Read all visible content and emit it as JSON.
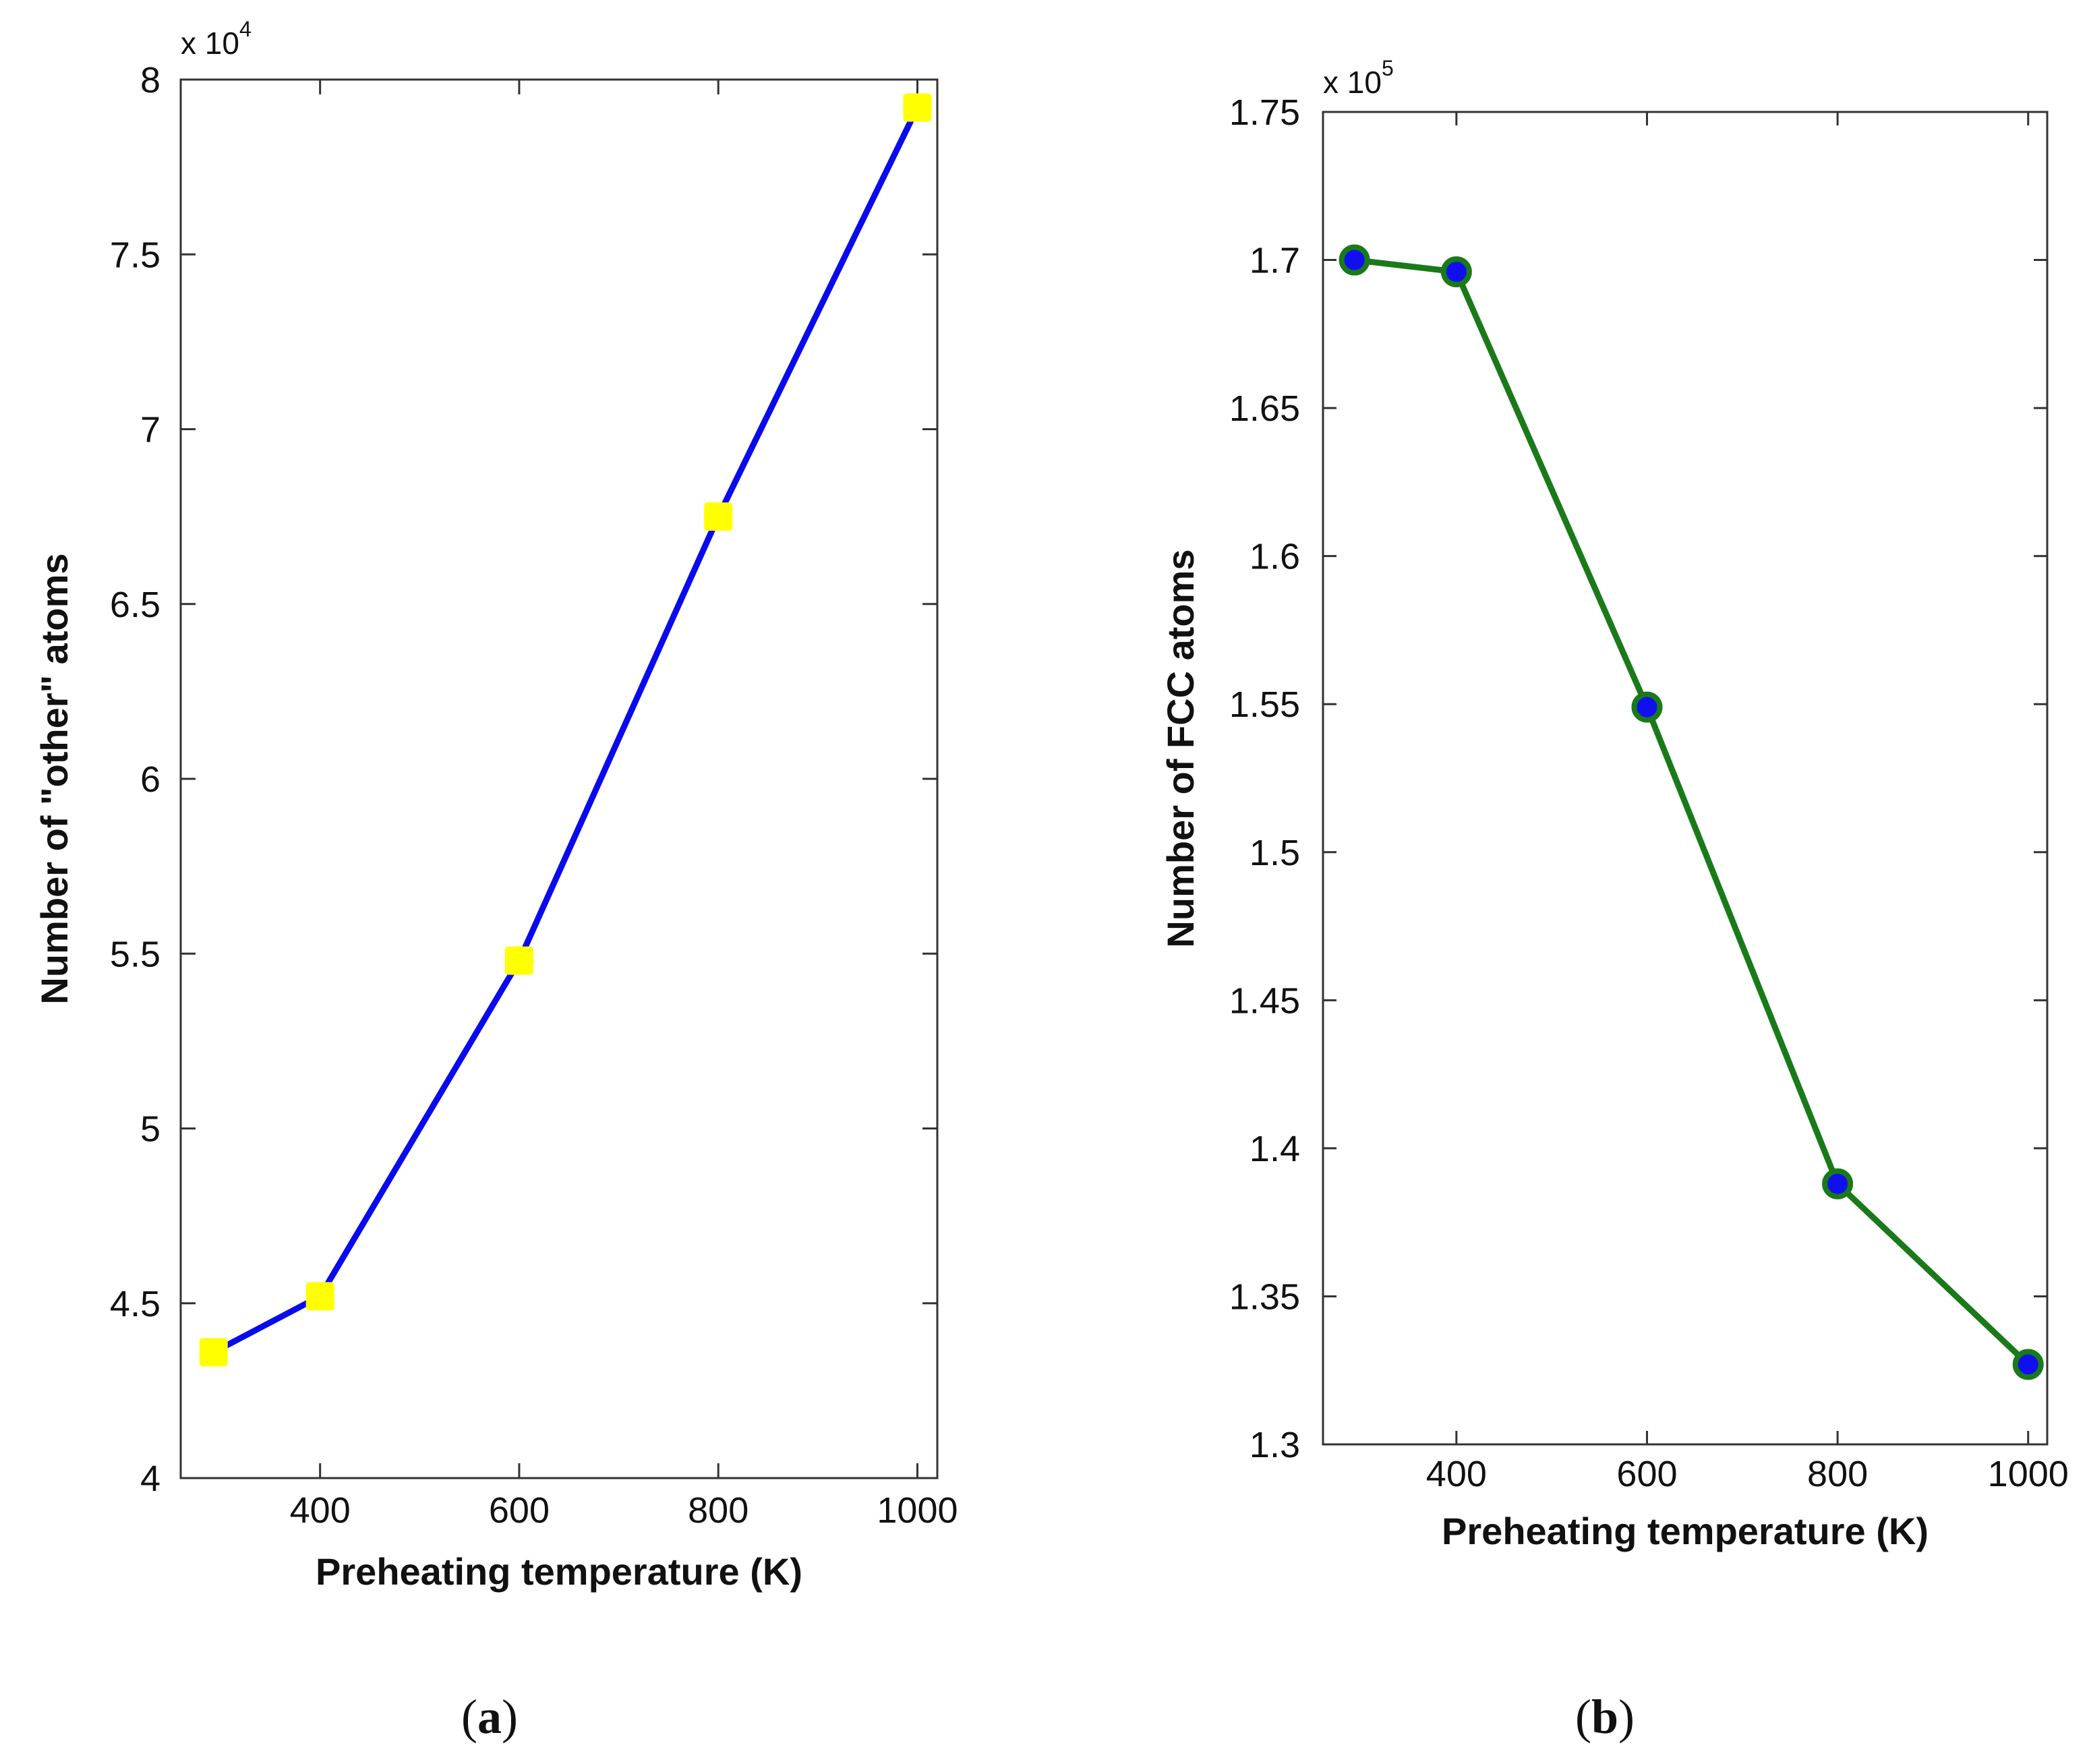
{
  "chart_data": [
    {
      "type": "line",
      "panel_label": "a",
      "x": [
        293,
        400,
        600,
        800,
        1000
      ],
      "series": [
        {
          "name": "other atoms",
          "values": [
            43600,
            45200,
            54800,
            67500,
            79200
          ],
          "line_color": "#0a0aee",
          "marker": "square",
          "marker_color": "#ffff00"
        }
      ],
      "xlabel": "Preheating temperature (K)",
      "ylabel": "Number of \"other\" atoms",
      "xlim": [
        260,
        1020
      ],
      "ylim": [
        40000,
        80000
      ],
      "xticks": [
        400,
        600,
        800,
        1000
      ],
      "xtick_labels": [
        "400",
        "600",
        "800",
        "1000"
      ],
      "yticks": [
        40000,
        45000,
        50000,
        55000,
        60000,
        65000,
        70000,
        75000,
        80000
      ],
      "ytick_labels": [
        "4",
        "4.5",
        "5",
        "5.5",
        "6",
        "6.5",
        "7",
        "7.5",
        "8"
      ],
      "multiplier_base": "x 10",
      "multiplier_exp": "4",
      "grid": false
    },
    {
      "type": "line",
      "panel_label": "b",
      "x": [
        293,
        400,
        600,
        800,
        1000
      ],
      "series": [
        {
          "name": "FCC atoms",
          "values": [
            170000,
            169600,
            154900,
            138800,
            132700
          ],
          "line_color": "#1a7a1a",
          "marker": "circle",
          "marker_color": "#1010ee"
        }
      ],
      "xlabel": "Preheating temperature (K)",
      "ylabel": "Number of FCC atoms",
      "xlim": [
        260,
        1020
      ],
      "ylim": [
        130000,
        175000
      ],
      "xticks": [
        400,
        600,
        800,
        1000
      ],
      "xtick_labels": [
        "400",
        "600",
        "800",
        "1000"
      ],
      "yticks": [
        130000,
        135000,
        140000,
        145000,
        150000,
        155000,
        160000,
        165000,
        170000,
        175000
      ],
      "ytick_labels": [
        "1.3",
        "1.35",
        "1.4",
        "1.45",
        "1.5",
        "1.55",
        "1.6",
        "1.65",
        "1.7",
        "1.75"
      ],
      "multiplier_base": "x 10",
      "multiplier_exp": "5",
      "grid": false
    }
  ]
}
